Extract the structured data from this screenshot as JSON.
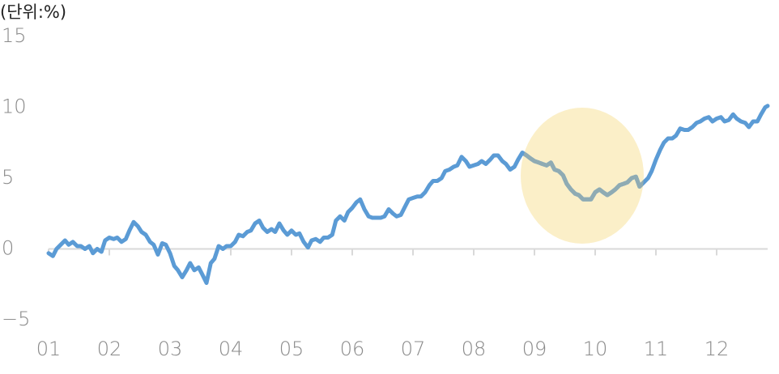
{
  "chart_data": {
    "type": "line",
    "unit_label": "(단위:%)",
    "xlim": [
      1,
      12.84
    ],
    "ylim": [
      -5,
      15
    ],
    "xticks": [
      {
        "value": 1,
        "label": "01"
      },
      {
        "value": 2,
        "label": "02"
      },
      {
        "value": 3,
        "label": "03"
      },
      {
        "value": 4,
        "label": "04"
      },
      {
        "value": 5,
        "label": "05"
      },
      {
        "value": 6,
        "label": "06"
      },
      {
        "value": 7,
        "label": "07"
      },
      {
        "value": 8,
        "label": "08"
      },
      {
        "value": 9,
        "label": "09"
      },
      {
        "value": 10,
        "label": "10"
      },
      {
        "value": 11,
        "label": "11"
      },
      {
        "value": 12,
        "label": "12"
      }
    ],
    "yticks": [
      {
        "value": -5,
        "label": "−5"
      },
      0,
      5,
      10,
      15
    ],
    "grid": false,
    "x": [
      1.0,
      1.07,
      1.13,
      1.2,
      1.27,
      1.33,
      1.4,
      1.47,
      1.53,
      1.6,
      1.67,
      1.73,
      1.8,
      1.87,
      1.93,
      2.0,
      2.07,
      2.13,
      2.2,
      2.27,
      2.33,
      2.4,
      2.47,
      2.53,
      2.6,
      2.67,
      2.73,
      2.8,
      2.87,
      2.93,
      3.0,
      3.07,
      3.13,
      3.2,
      3.27,
      3.33,
      3.4,
      3.47,
      3.53,
      3.6,
      3.67,
      3.73,
      3.8,
      3.87,
      3.93,
      4.0,
      4.07,
      4.13,
      4.2,
      4.27,
      4.33,
      4.4,
      4.47,
      4.53,
      4.6,
      4.67,
      4.73,
      4.8,
      4.87,
      4.93,
      5.0,
      5.07,
      5.13,
      5.2,
      5.27,
      5.33,
      5.4,
      5.47,
      5.53,
      5.6,
      5.67,
      5.73,
      5.8,
      5.87,
      5.93,
      6.0,
      6.07,
      6.13,
      6.2,
      6.27,
      6.33,
      6.4,
      6.47,
      6.53,
      6.6,
      6.67,
      6.73,
      6.8,
      6.87,
      6.93,
      7.0,
      7.07,
      7.13,
      7.2,
      7.27,
      7.33,
      7.4,
      7.47,
      7.53,
      7.6,
      7.67,
      7.73,
      7.8,
      7.87,
      7.93,
      8.0,
      8.07,
      8.13,
      8.2,
      8.27,
      8.33,
      8.4,
      8.47,
      8.53,
      8.6,
      8.67,
      8.73,
      8.8,
      8.87,
      8.93,
      9.0,
      9.07,
      9.13,
      9.2,
      9.27,
      9.33,
      9.4,
      9.47,
      9.53,
      9.6,
      9.67,
      9.73,
      9.8,
      9.87,
      9.93,
      10.0,
      10.07,
      10.13,
      10.2,
      10.27,
      10.33,
      10.4,
      10.47,
      10.53,
      10.6,
      10.67,
      10.73,
      10.8,
      10.87,
      10.93,
      11.0,
      11.07,
      11.13,
      11.2,
      11.27,
      11.33,
      11.4,
      11.47,
      11.53,
      11.6,
      11.67,
      11.73,
      11.8,
      11.87,
      11.93,
      12.0,
      12.07,
      12.13,
      12.2,
      12.27,
      12.33,
      12.4,
      12.47,
      12.53,
      12.6,
      12.67,
      12.73,
      12.8,
      12.84
    ],
    "series": [
      {
        "color": "#5b9bd5",
        "highlight_color": "#8fabb3",
        "values": [
          -0.3,
          -0.5,
          0.0,
          0.3,
          0.6,
          0.3,
          0.5,
          0.2,
          0.2,
          0.0,
          0.2,
          -0.3,
          0.0,
          -0.2,
          0.6,
          0.8,
          0.7,
          0.8,
          0.5,
          0.7,
          1.3,
          1.9,
          1.6,
          1.2,
          1.0,
          0.5,
          0.3,
          -0.4,
          0.4,
          0.3,
          -0.3,
          -1.2,
          -1.5,
          -2.0,
          -1.5,
          -1.0,
          -1.5,
          -1.3,
          -1.8,
          -2.4,
          -1.0,
          -0.7,
          0.2,
          0.0,
          0.2,
          0.2,
          0.5,
          1.0,
          0.9,
          1.2,
          1.3,
          1.8,
          2.0,
          1.5,
          1.2,
          1.4,
          1.2,
          1.8,
          1.3,
          1.0,
          1.3,
          1.0,
          1.1,
          0.5,
          0.1,
          0.6,
          0.7,
          0.5,
          0.8,
          0.8,
          1.0,
          2.0,
          2.3,
          2.0,
          2.6,
          2.9,
          3.3,
          3.5,
          2.8,
          2.3,
          2.2,
          2.2,
          2.2,
          2.3,
          2.8,
          2.5,
          2.3,
          2.4,
          3.0,
          3.5,
          3.6,
          3.7,
          3.7,
          4.0,
          4.5,
          4.8,
          4.8,
          5.0,
          5.5,
          5.6,
          5.8,
          5.9,
          6.5,
          6.2,
          5.8,
          5.9,
          6.0,
          6.2,
          6.0,
          6.3,
          6.6,
          6.6,
          6.2,
          6.0,
          5.6,
          5.8,
          6.3,
          6.8,
          6.6,
          6.4,
          6.2,
          6.1,
          6.0,
          5.9,
          6.1,
          5.6,
          5.5,
          5.2,
          4.6,
          4.2,
          3.9,
          3.8,
          3.5,
          3.5,
          3.5,
          4.0,
          4.2,
          4.0,
          3.8,
          4.0,
          4.2,
          4.5,
          4.6,
          4.7,
          5.0,
          5.1,
          4.4,
          4.7,
          5.0,
          5.5,
          6.3,
          7.0,
          7.5,
          7.8,
          7.8,
          8.0,
          8.5,
          8.4,
          8.4,
          8.6,
          8.9,
          9.0,
          9.2,
          9.3,
          9.0,
          9.2,
          9.3,
          9.0,
          9.1,
          9.5,
          9.2,
          9.0,
          8.9,
          8.6,
          9.0,
          9.0,
          9.5,
          10.0,
          10.1
        ]
      }
    ]
  }
}
